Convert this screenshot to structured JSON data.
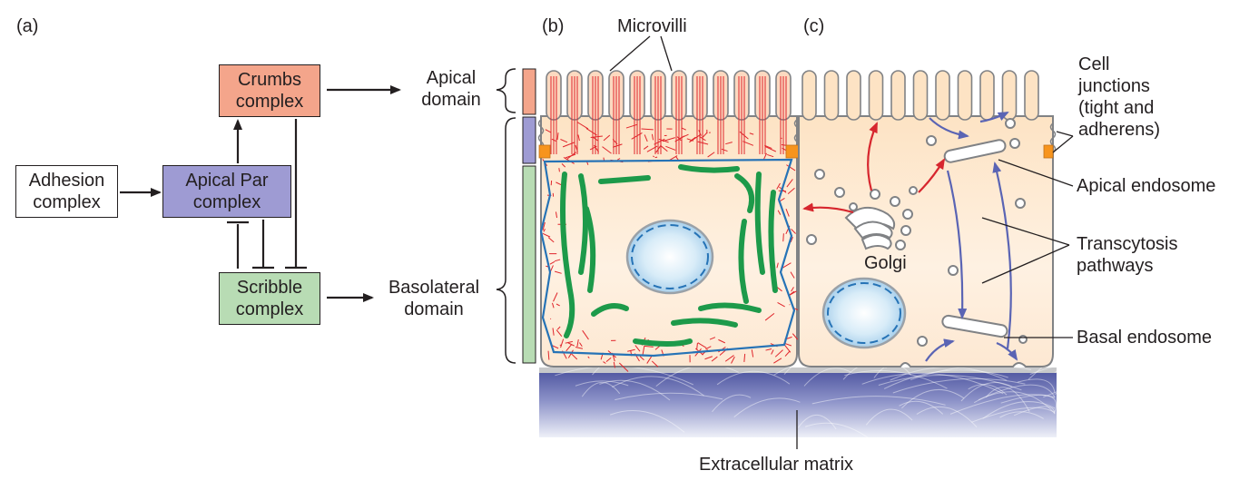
{
  "panels": {
    "a": "(a)",
    "b": "(b)",
    "c": "(c)"
  },
  "boxes": {
    "crumbs": {
      "line1": "Crumbs",
      "line2": "complex"
    },
    "adhesion": {
      "line1": "Adhesion",
      "line2": "complex"
    },
    "apical_par": {
      "line1": "Apical Par",
      "line2": "complex"
    },
    "scribble": {
      "line1": "Scribble",
      "line2": "complex"
    }
  },
  "domains": {
    "apical": {
      "line1": "Apical",
      "line2": "domain"
    },
    "basolateral": {
      "line1": "Basolateral",
      "line2": "domain"
    }
  },
  "labels": {
    "microvilli": "Microvilli",
    "cell_junctions": [
      "Cell",
      "junctions",
      "(tight and",
      "adherens)"
    ],
    "apical_endosome": "Apical endosome",
    "transcytosis": [
      "Transcytosis",
      "pathways"
    ],
    "golgi": "Golgi",
    "basal_endosome": "Basal endosome",
    "ecm": "Extracellular matrix"
  },
  "colors": {
    "crumbs": "#f4a58b",
    "apical_par": "#9e9bd3",
    "scribble": "#b8dcb4",
    "red_arrow": "#d7262e",
    "blue_arrow": "#5a64b4",
    "mito": "#1d9a4a",
    "membrane": "#2673b6",
    "cytoplasm": "#fde6cc",
    "ecm": "#5d64a9"
  }
}
